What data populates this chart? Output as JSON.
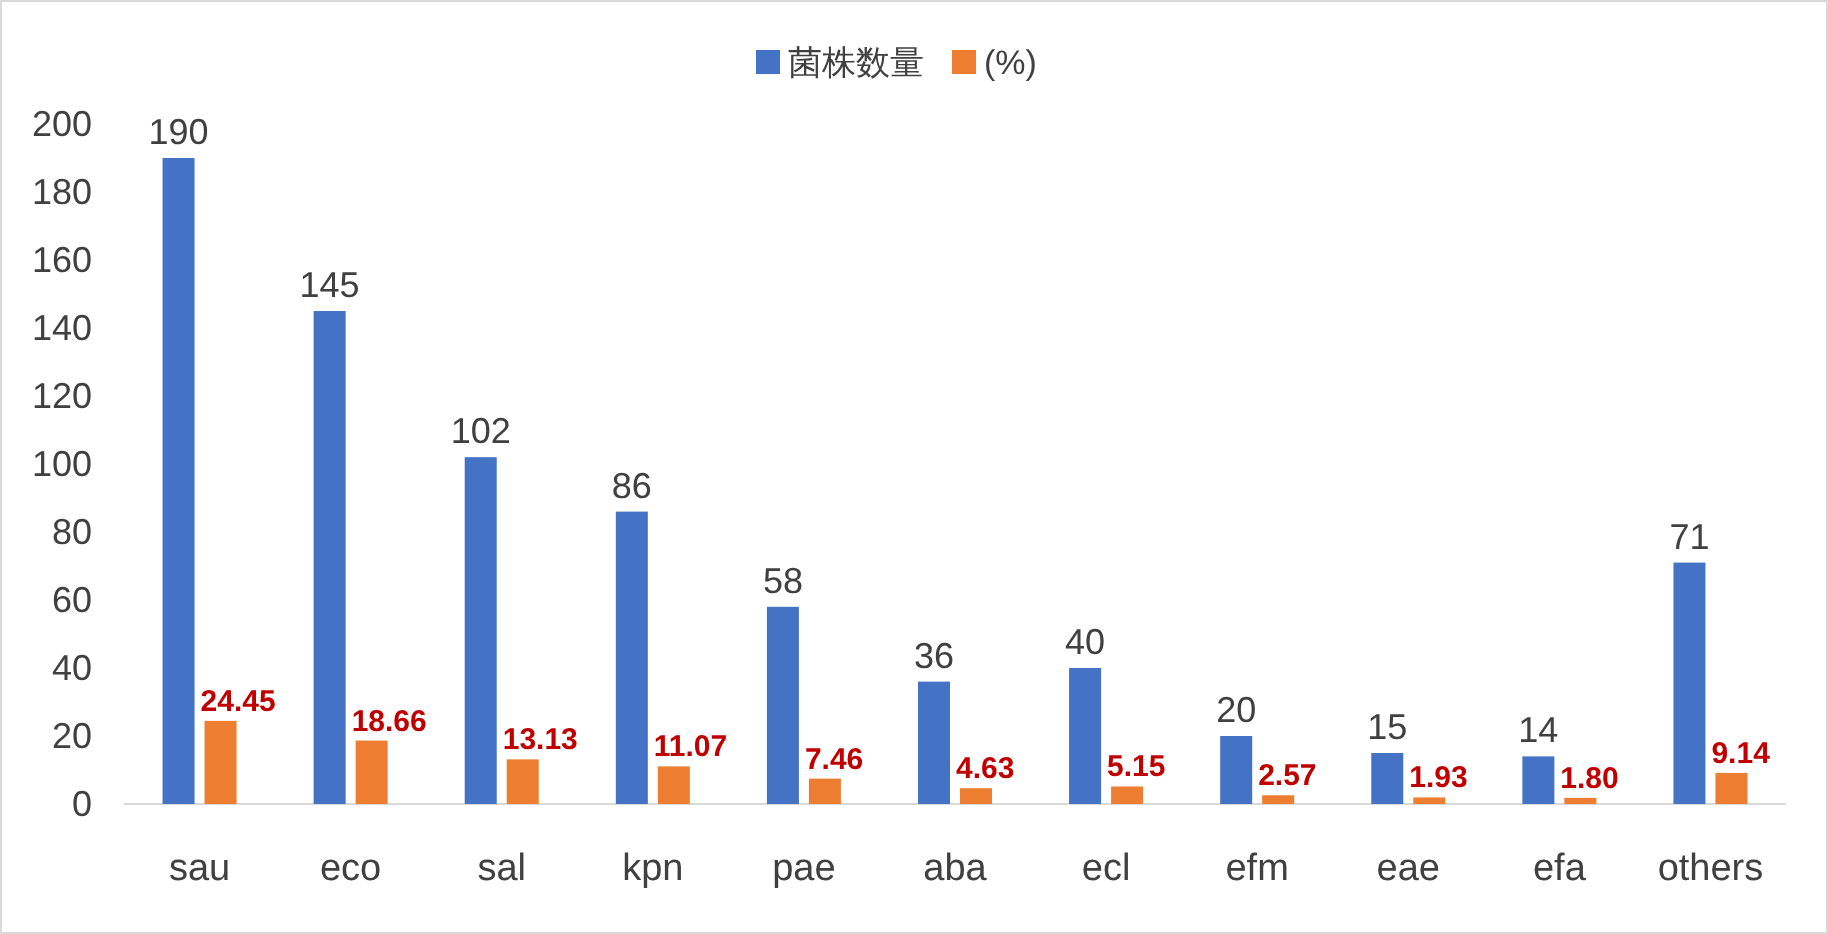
{
  "chart_data": {
    "type": "bar",
    "categories": [
      "sau",
      "eco",
      "sal",
      "kpn",
      "pae",
      "aba",
      "ecl",
      "efm",
      "eae",
      "efa",
      "others"
    ],
    "series": [
      {
        "name": "菌株数量",
        "color": "#4472c4",
        "values": [
          190,
          145,
          102,
          86,
          58,
          36,
          40,
          20,
          15,
          14,
          71
        ]
      },
      {
        "name": "(%)",
        "color": "#ed7d31",
        "values": [
          24.45,
          18.66,
          13.13,
          11.07,
          7.46,
          4.63,
          5.15,
          2.57,
          1.93,
          1.8,
          9.14
        ],
        "value_labels": [
          "24.45",
          "18.66",
          "13.13",
          "11.07",
          "7.46",
          "4.63",
          "5.15",
          "2.57",
          "1.93",
          "1.80",
          "9.14"
        ]
      }
    ],
    "ylim": [
      0,
      200
    ],
    "yticks": [
      0,
      20,
      40,
      60,
      80,
      100,
      120,
      140,
      160,
      180,
      200
    ],
    "grid": false,
    "legend": "top",
    "data_labels": true
  }
}
